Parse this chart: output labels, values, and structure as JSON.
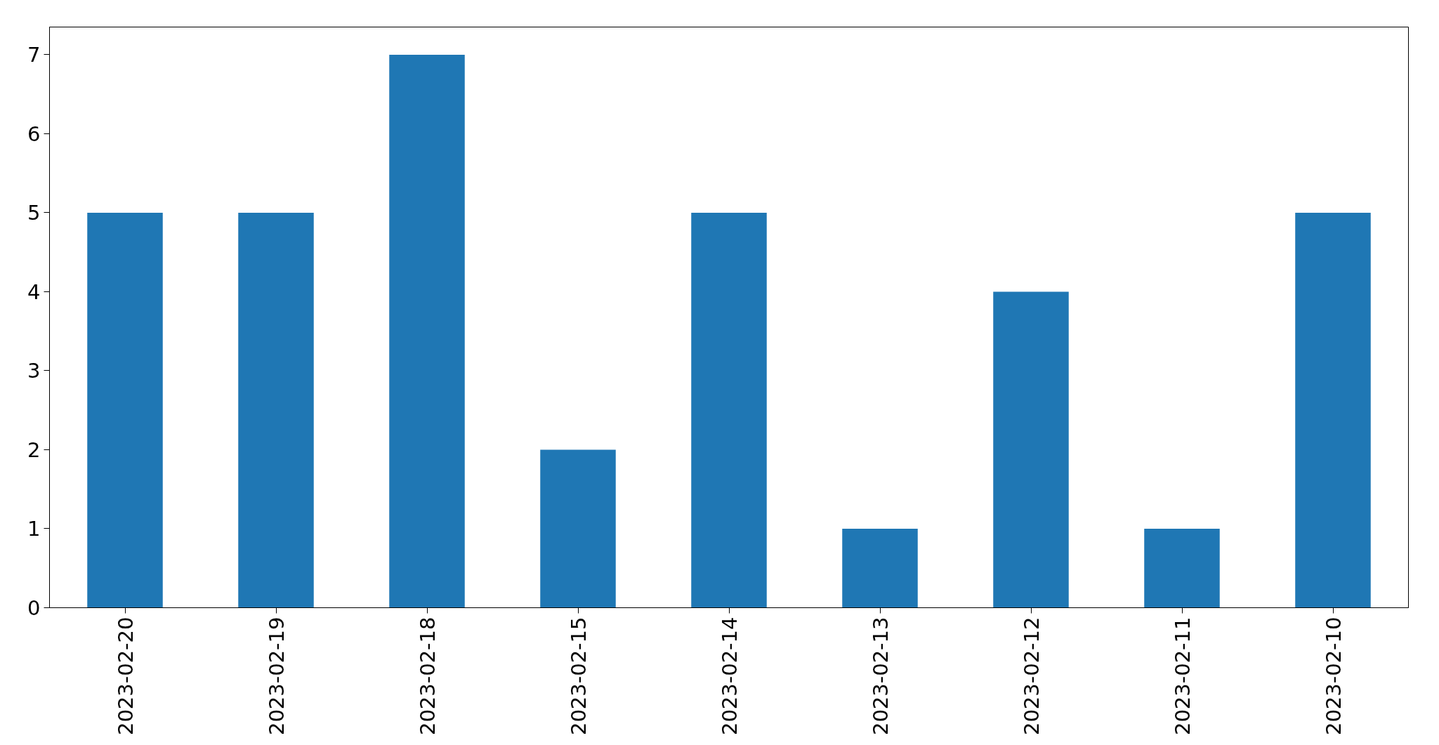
{
  "chart_data": {
    "type": "bar",
    "categories": [
      "2023-02-20",
      "2023-02-19",
      "2023-02-18",
      "2023-02-15",
      "2023-02-14",
      "2023-02-13",
      "2023-02-12",
      "2023-02-11",
      "2023-02-10"
    ],
    "values": [
      5,
      5,
      7,
      2,
      5,
      1,
      4,
      1,
      5
    ],
    "color": "#1f77b4",
    "ylim": [
      0,
      7.35
    ],
    "yticks": [
      0,
      1,
      2,
      3,
      4,
      5,
      6,
      7
    ],
    "grid": false
  }
}
